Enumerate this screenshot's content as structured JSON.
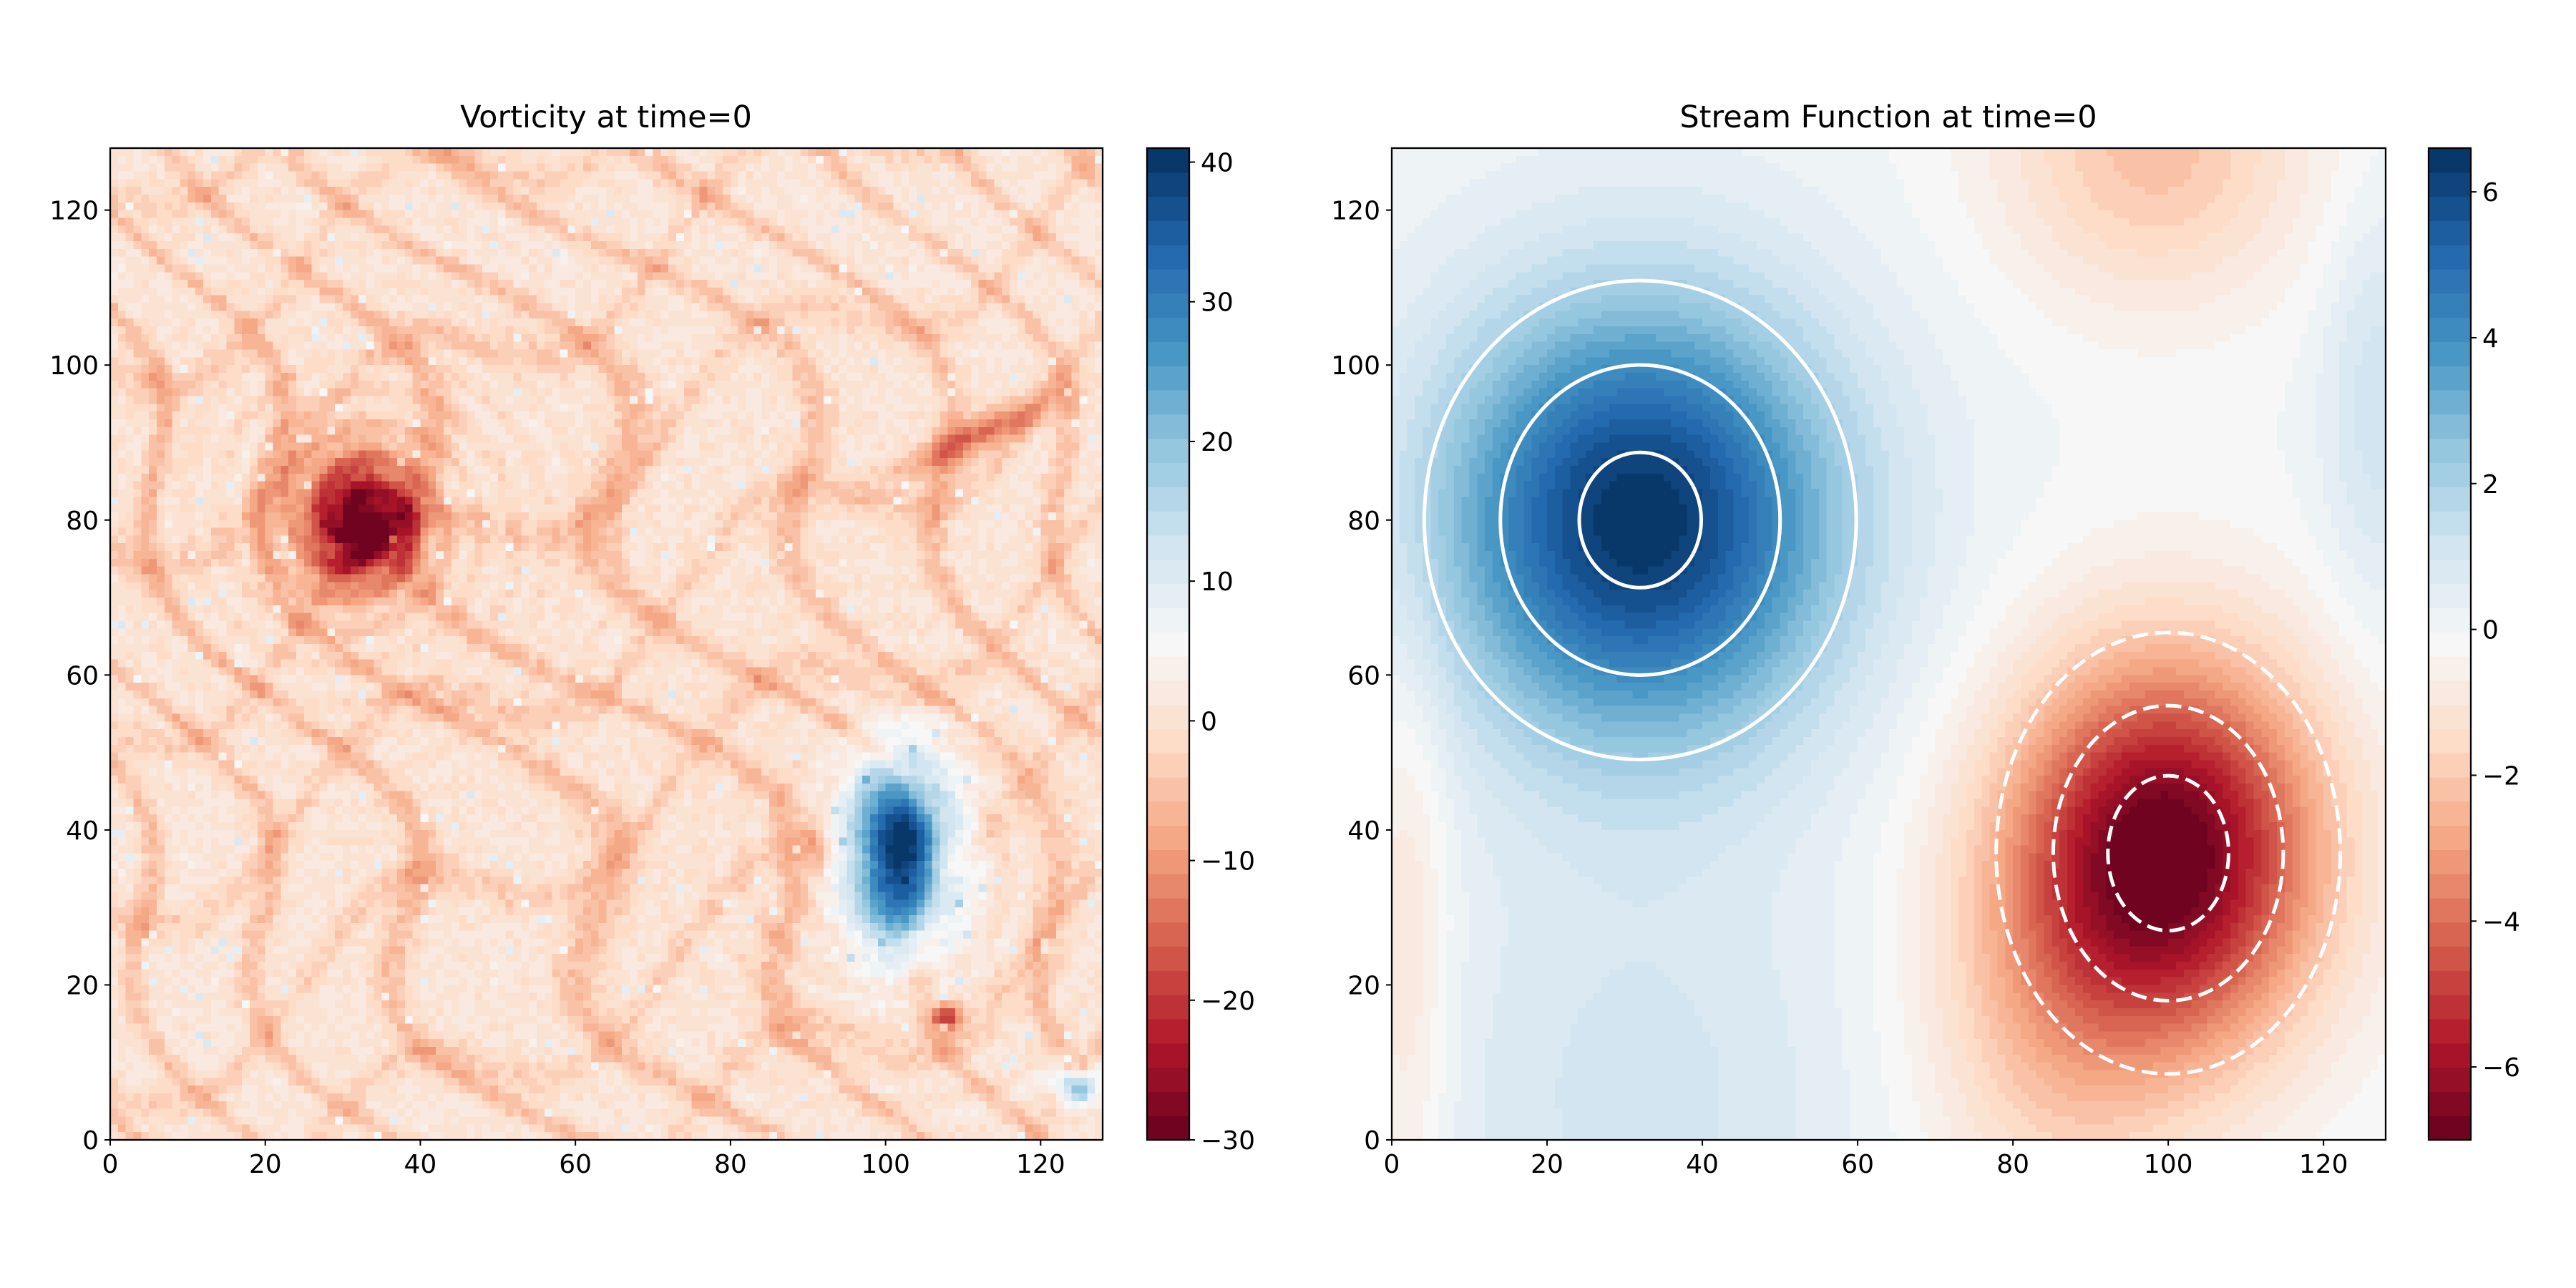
{
  "chart_data": [
    {
      "type": "heatmap",
      "title": "Vorticity at time=0",
      "xlabel": "",
      "ylabel": "",
      "xlim": [
        0,
        128
      ],
      "ylim": [
        0,
        128
      ],
      "grid_size": [
        128,
        128
      ],
      "xticks": [
        "0",
        "20",
        "40",
        "60",
        "80",
        "100",
        "120"
      ],
      "yticks": [
        "0",
        "20",
        "40",
        "60",
        "80",
        "100",
        "120"
      ],
      "colormap": "RdBu",
      "colorbar": {
        "range": [
          -30,
          41
        ],
        "ticks": [
          "−30",
          "−20",
          "−10",
          "0",
          "10",
          "20",
          "30",
          "40"
        ],
        "tick_values": [
          -30,
          -20,
          -10,
          0,
          10,
          20,
          30,
          40
        ]
      },
      "features": [
        {
          "kind": "negative vortex",
          "center": [
            32,
            80
          ],
          "peak": -30
        },
        {
          "kind": "positive vortex",
          "center": [
            102,
            37
          ],
          "peak": 40
        },
        {
          "kind": "positive spot",
          "center": [
            125,
            7
          ],
          "peak": 25
        },
        {
          "kind": "negative spot",
          "center": [
            108,
            16
          ],
          "peak": -20
        },
        {
          "kind": "negative filament",
          "center": [
            112,
            91
          ],
          "peak": -15
        }
      ],
      "grid": false
    },
    {
      "type": "heatmap",
      "title": "Stream Function at time=0",
      "xlabel": "",
      "ylabel": "",
      "xlim": [
        0,
        128
      ],
      "ylim": [
        0,
        128
      ],
      "grid_size": [
        128,
        128
      ],
      "xticks": [
        "0",
        "20",
        "40",
        "60",
        "80",
        "100",
        "120"
      ],
      "yticks": [
        "0",
        "20",
        "40",
        "60",
        "80",
        "100",
        "120"
      ],
      "colormap": "RdBu",
      "colorbar": {
        "range": [
          -7.0,
          6.6
        ],
        "ticks": [
          "−6",
          "−4",
          "−2",
          "0",
          "2",
          "4",
          "6"
        ],
        "tick_values": [
          -6,
          -4,
          -2,
          0,
          2,
          4,
          6
        ]
      },
      "features": [
        {
          "kind": "positive maximum",
          "center": [
            32,
            80
          ],
          "peak": 6.6
        },
        {
          "kind": "negative minimum",
          "center": [
            100,
            37
          ],
          "peak": -7.0
        }
      ],
      "contours": {
        "color": "#ffffff",
        "levels": [
          -6,
          -4,
          -2,
          2,
          4,
          6
        ],
        "negative_style": "dashed",
        "positive_style": "solid"
      },
      "grid": false
    }
  ]
}
